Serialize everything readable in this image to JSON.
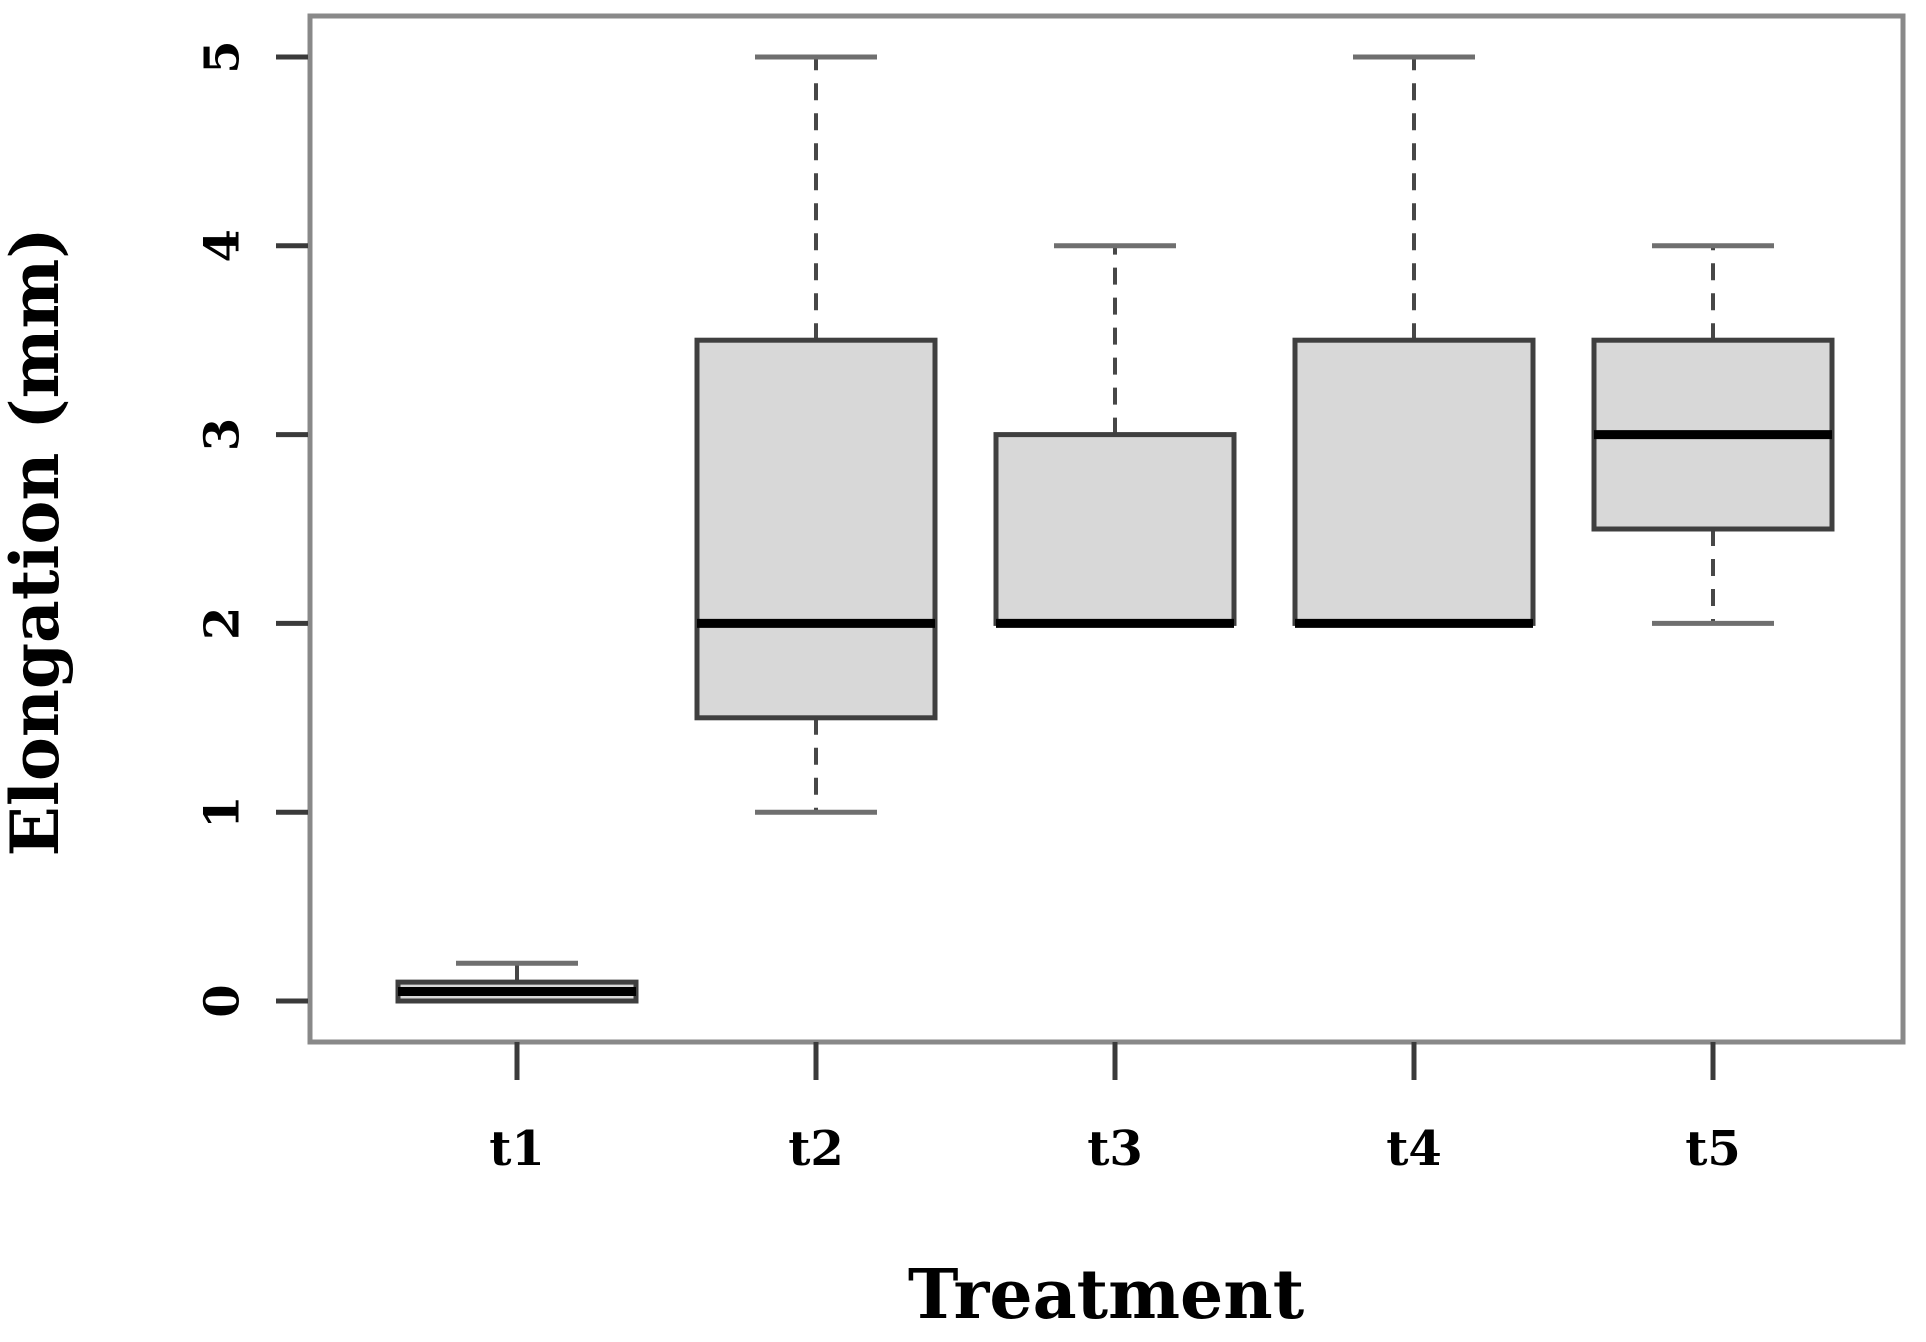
{
  "figure": {
    "background": "#ffffff"
  },
  "chart_data": {
    "type": "boxplot",
    "title": "",
    "xlabel": "Treatment",
    "ylabel": "Elongation (mm)",
    "categories": [
      "t1",
      "t2",
      "t3",
      "t4",
      "t5"
    ],
    "series": [
      {
        "name": "t1",
        "min": 0,
        "q1": 0,
        "median": 0.05,
        "q3": 0.1,
        "max": 0.2
      },
      {
        "name": "t2",
        "min": 1,
        "q1": 1.5,
        "median": 2,
        "q3": 3.5,
        "max": 5
      },
      {
        "name": "t3",
        "min": 2,
        "q1": 2,
        "median": 2,
        "q3": 3,
        "max": 4
      },
      {
        "name": "t4",
        "min": 2,
        "q1": 2,
        "median": 2,
        "q3": 3.5,
        "max": 5
      },
      {
        "name": "t5",
        "min": 2,
        "q1": 2.5,
        "median": 3,
        "q3": 3.5,
        "max": 4
      }
    ],
    "ylim": [
      0,
      5
    ],
    "yticks": [
      0,
      1,
      2,
      3,
      4,
      5
    ],
    "grid": false,
    "legend": "none",
    "box_fill": "#d8d8d8",
    "box_border": "#3f3f3f",
    "median_color": "#000000",
    "whisker_color": "#474747",
    "cap_color": "#6f6f6f",
    "frame_color": "#898989",
    "tick_color": "#3a3a3a",
    "text_color": "#000000"
  }
}
